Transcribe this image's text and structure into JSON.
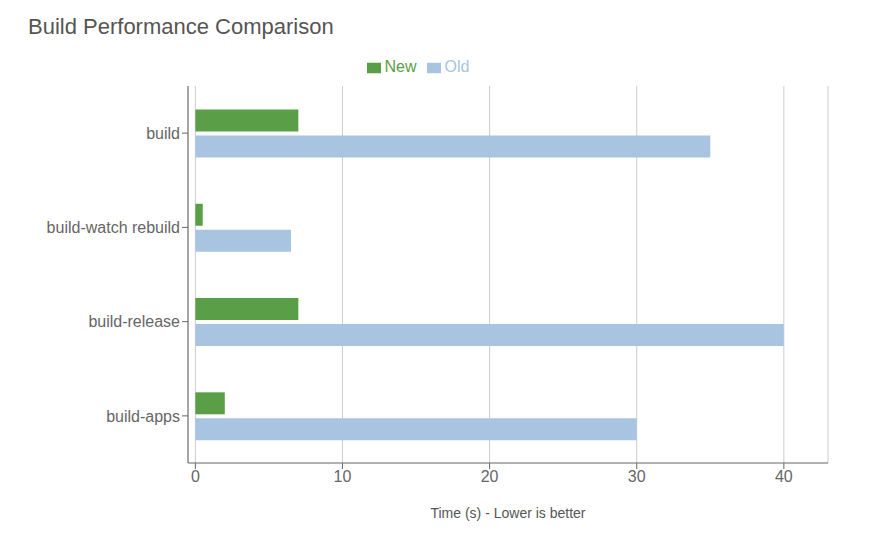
{
  "chart_data": {
    "type": "bar",
    "orientation": "horizontal",
    "title": "Build Performance Comparison",
    "categories": [
      "build",
      "build-watch rebuild",
      "build-release",
      "build-apps"
    ],
    "series": [
      {
        "name": "New",
        "color": "#5a9e47",
        "values": [
          7,
          0.5,
          7,
          2
        ]
      },
      {
        "name": "Old",
        "color": "#a8c4e0",
        "values": [
          35,
          6.5,
          40,
          30
        ]
      }
    ],
    "xlabel": "Time (s) - Lower is better",
    "xlim": [
      -0.5,
      43
    ],
    "xticks": [
      0,
      10,
      20,
      30,
      40
    ],
    "grid": true,
    "legend": "top"
  }
}
